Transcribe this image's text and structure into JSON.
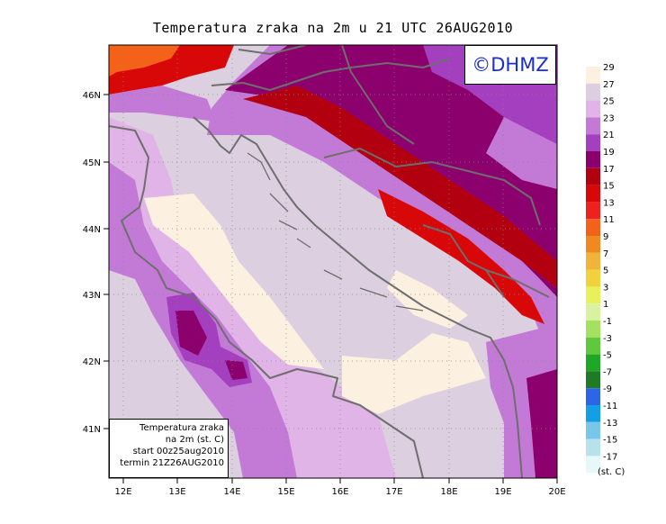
{
  "title": "Temperatura zraka na 2m u 21 UTC 26AUG2010",
  "logo_text": "©DHMZ",
  "info": {
    "line1": "Temperatura zraka",
    "line2": "na 2m (st. C)",
    "line3": "start 00z25aug2010",
    "line4": "termin 21Z26AUG2010"
  },
  "lat_labels": [
    "46N",
    "45N",
    "44N",
    "43N",
    "42N",
    "41N"
  ],
  "lon_labels": [
    "12E",
    "13E",
    "14E",
    "15E",
    "16E",
    "17E",
    "18E",
    "19E",
    "20E"
  ],
  "legend": {
    "units": "(st. C)",
    "labels": [
      "29",
      "27",
      "25",
      "23",
      "21",
      "19",
      "17",
      "15",
      "13",
      "11",
      "9",
      "7",
      "5",
      "3",
      "1",
      "-1",
      "-3",
      "-5",
      "-7",
      "-9",
      "-11",
      "-13",
      "-15",
      "-17"
    ],
    "colors": [
      "#fcf0e0",
      "#dccfdf",
      "#e0b4e6",
      "#c37ad6",
      "#a43fbf",
      "#8c006e",
      "#b30010",
      "#d80808",
      "#ef2020",
      "#f4621a",
      "#f08a20",
      "#f0b43a",
      "#f0d23c",
      "#e8f05a",
      "#d8f2a0",
      "#a6e060",
      "#5fc83c",
      "#1fa828",
      "#1e7a24",
      "#2e64e6",
      "#129fe6",
      "#78c6ea",
      "#b8e2ea",
      "#e6f8f8"
    ]
  }
}
